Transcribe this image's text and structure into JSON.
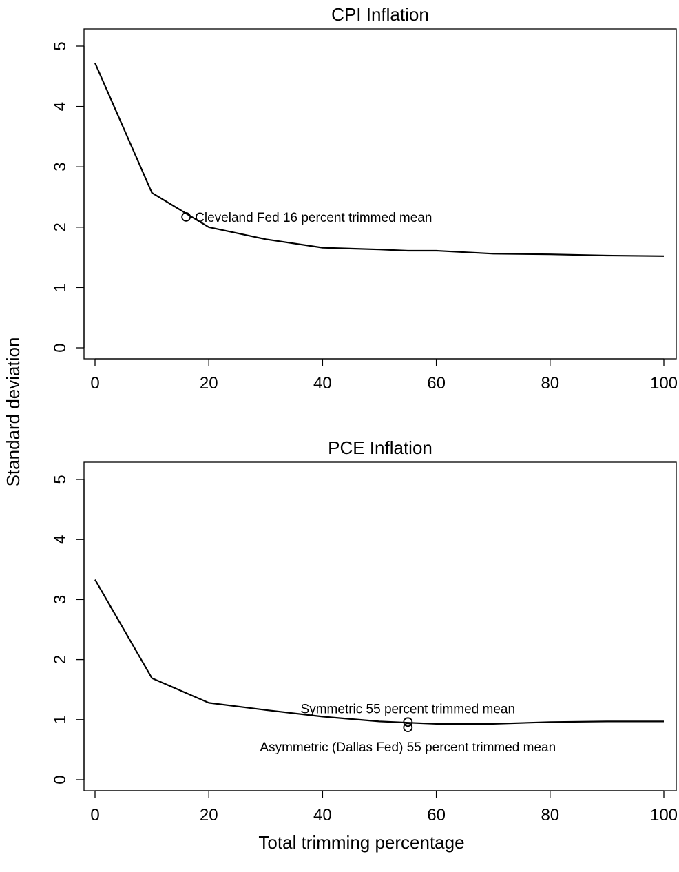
{
  "figure": {
    "shared_ylabel": "Standard deviation",
    "shared_xlabel": "Total trimming percentage"
  },
  "chart_data": [
    {
      "type": "line",
      "title": "CPI Inflation",
      "xlim": [
        0,
        100
      ],
      "ylim": [
        0,
        5
      ],
      "xticks": [
        0,
        20,
        40,
        60,
        80,
        100
      ],
      "yticks": [
        0,
        1,
        2,
        3,
        4,
        5
      ],
      "grid": false,
      "series": [
        {
          "x": [
            0,
            10,
            20,
            30,
            40,
            50,
            55,
            60,
            70,
            80,
            90,
            100
          ],
          "y": [
            4.72,
            2.57,
            2.0,
            1.8,
            1.66,
            1.63,
            1.61,
            1.61,
            1.56,
            1.55,
            1.53,
            1.52
          ]
        }
      ],
      "markers": [
        {
          "x": 16,
          "y": 2.17,
          "label": "Cleveland Fed 16 percent trimmed mean",
          "label_pos": "right"
        }
      ]
    },
    {
      "type": "line",
      "title": "PCE Inflation",
      "xlim": [
        0,
        100
      ],
      "ylim": [
        0,
        5
      ],
      "xticks": [
        0,
        20,
        40,
        60,
        80,
        100
      ],
      "yticks": [
        0,
        1,
        2,
        3,
        4,
        5
      ],
      "grid": false,
      "series": [
        {
          "x": [
            0,
            10,
            20,
            30,
            40,
            50,
            55,
            60,
            70,
            80,
            90,
            100
          ],
          "y": [
            3.33,
            1.69,
            1.28,
            1.16,
            1.05,
            0.97,
            0.95,
            0.93,
            0.93,
            0.96,
            0.97,
            0.97
          ]
        }
      ],
      "markers": [
        {
          "x": 55,
          "y": 0.96,
          "label": "Symmetric 55 percent trimmed mean",
          "label_pos": "above"
        },
        {
          "x": 55,
          "y": 0.87,
          "label": "Asymmetric (Dallas Fed) 55 percent trimmed mean",
          "label_pos": "below"
        }
      ]
    }
  ]
}
